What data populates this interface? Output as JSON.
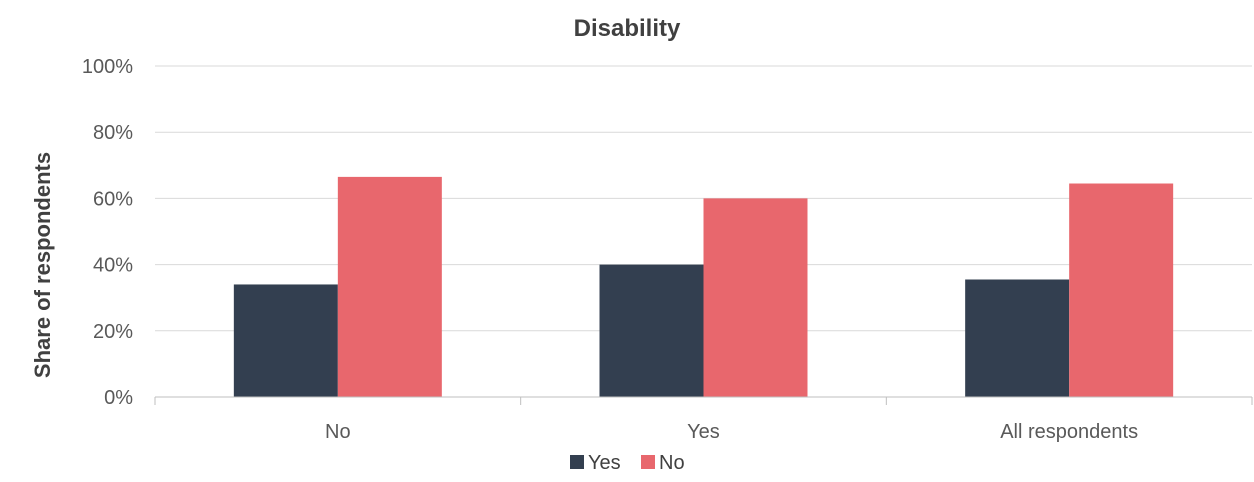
{
  "chart_data": {
    "type": "bar",
    "title": "Disability",
    "xlabel": "",
    "ylabel": "Share of respondents",
    "categories": [
      "No",
      "Yes",
      "All respondents"
    ],
    "series": [
      {
        "name": "Yes",
        "values": [
          34,
          40,
          35.5
        ],
        "color": "#333f50"
      },
      {
        "name": "No",
        "values": [
          66.5,
          60,
          64.5
        ],
        "color": "#e8676d"
      }
    ],
    "ylim": [
      0,
      100
    ],
    "yticks": [
      0,
      20,
      40,
      60,
      80,
      100
    ],
    "ytick_labels": [
      "0%",
      "20%",
      "40%",
      "60%",
      "80%",
      "100%"
    ],
    "grid": true,
    "legend": "bottom"
  }
}
